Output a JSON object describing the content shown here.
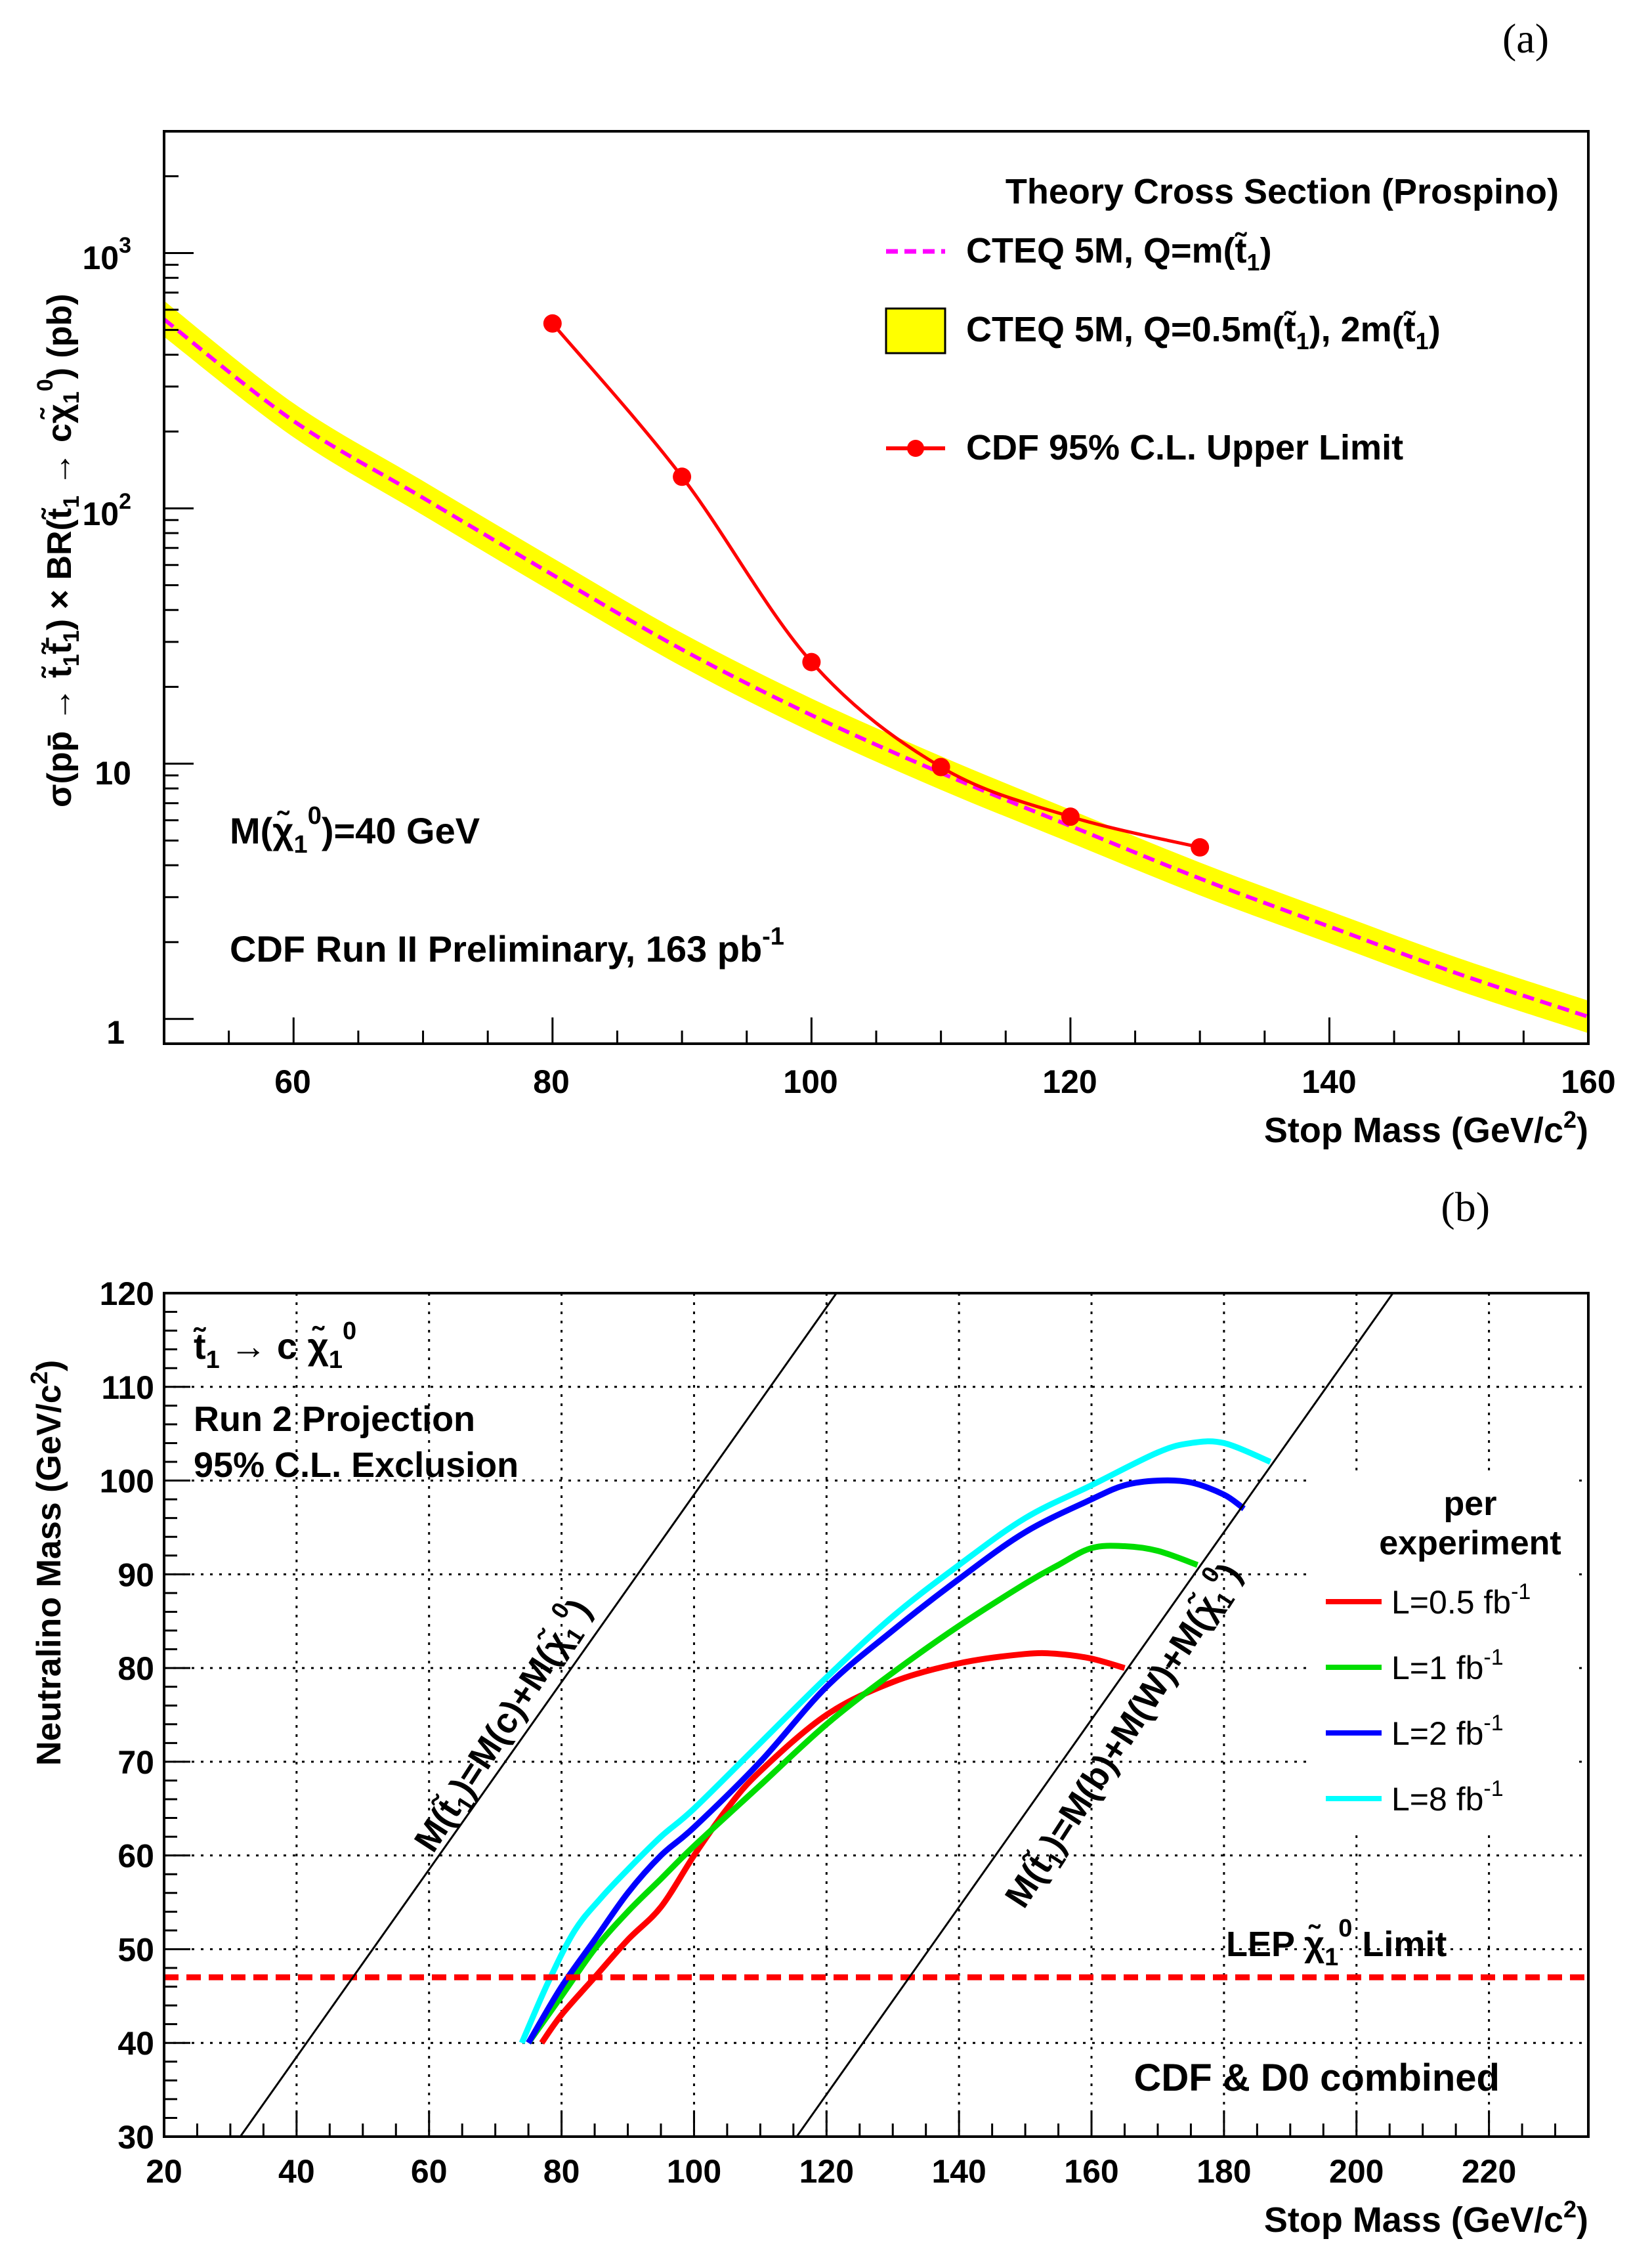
{
  "chart_data": [
    {
      "panel_label": "(a)",
      "type": "line",
      "y_scale": "log",
      "xlabel": "Stop Mass (GeV/c²)",
      "ylabel": "σ(pp̄ → t̃₁t̃̄₁) × BR(t̃₁ → cχ̃₁⁰) (pb)",
      "xlim": [
        50,
        160
      ],
      "ylim": [
        0.8,
        3000
      ],
      "x_ticks": [
        60,
        80,
        100,
        120,
        140,
        160
      ],
      "y_tick_labels": [
        "1",
        "10",
        "10²",
        "10³"
      ],
      "legend": {
        "title": "Theory Cross Section (Prospino)",
        "entries": [
          "CTEQ 5M, Q=m(t̃₁)",
          "CTEQ 5M, Q=0.5m(t̃₁), 2m(t̃₁)",
          "CDF 95% C.L. Upper Limit"
        ]
      },
      "annotations": [
        "M(χ̃₁⁰)=40 GeV",
        "CDF Run II Preliminary, 163 pb⁻¹"
      ],
      "series": [
        {
          "name": "CTEQ 5M, Q=m(t̃₁)",
          "style": "dashed",
          "color": "#ff00ff",
          "x": [
            50,
            60,
            70,
            80,
            90,
            100,
            110,
            120,
            130,
            140,
            150,
            160
          ],
          "y": [
            550,
            220,
            110,
            55,
            28,
            15.5,
            9.2,
            5.7,
            3.55,
            2.3,
            1.5,
            1.02
          ]
        },
        {
          "name": "CTEQ 5M, Q=0.5m(t̃₁), 2m(t̃₁)",
          "style": "band",
          "color": "#ffff00",
          "x": [
            50,
            60,
            70,
            80,
            90,
            100,
            110,
            120,
            130,
            140,
            150,
            160
          ],
          "y_low": [
            470,
            190,
            94,
            47,
            24,
            13.3,
            7.9,
            4.9,
            3.05,
            1.98,
            1.29,
            0.88
          ],
          "y_high": [
            650,
            258,
            128,
            64,
            32.5,
            18,
            10.7,
            6.6,
            4.1,
            2.65,
            1.73,
            1.18
          ]
        },
        {
          "name": "CDF 95% C.L. Upper Limit",
          "style": "line-markers",
          "color": "#ff0000",
          "x": [
            80,
            90,
            100,
            110,
            120,
            130
          ],
          "y": [
            530,
            133,
            25,
            9.7,
            6.2,
            4.7
          ]
        }
      ]
    },
    {
      "panel_label": "(b)",
      "type": "line",
      "xlabel": "Stop Mass (GeV/c²)",
      "ylabel": "Neutralino Mass (GeV/c²)",
      "xlim": [
        20,
        235
      ],
      "ylim": [
        30,
        120
      ],
      "x_ticks": [
        20,
        40,
        60,
        80,
        100,
        120,
        140,
        160,
        180,
        200,
        220
      ],
      "y_ticks": [
        30,
        40,
        50,
        60,
        70,
        80,
        90,
        100,
        110,
        120
      ],
      "grid": true,
      "texts": [
        "t̃₁ → c χ̃₁⁰",
        "Run 2 Projection",
        "95% C.L. Exclusion",
        "CDF & D0 combined",
        "LEP χ̃₁⁰ Limit",
        "M(t̃₁)=M(c)+M(χ̃₁⁰)",
        "M(t̃₁)=M(b)+M(W)+M(χ̃₁⁰)"
      ],
      "legend": {
        "title_lines": [
          "per",
          "experiment"
        ],
        "entries": [
          "L=0.5 fb⁻¹",
          "L=1 fb⁻¹",
          "L=2 fb⁻¹",
          "L=8 fb⁻¹"
        ]
      },
      "series": [
        {
          "name": "L=0.5 fb⁻¹",
          "color": "#ff0000",
          "x": [
            77,
            80,
            85,
            90,
            95,
            100,
            105,
            110,
            120,
            130,
            140,
            150,
            155,
            160,
            165
          ],
          "y": [
            40,
            43,
            47,
            51,
            54.5,
            60,
            65,
            69,
            75,
            78.5,
            80.5,
            81.5,
            81.5,
            81,
            80
          ]
        },
        {
          "name": "L=1 fb⁻¹",
          "color": "#00dd00",
          "x": [
            75,
            80,
            85,
            90,
            95,
            100,
            110,
            120,
            130,
            140,
            150,
            155,
            160,
            165,
            170,
            176
          ],
          "y": [
            40,
            45,
            50,
            54,
            57.5,
            61,
            67.5,
            74,
            79.5,
            84.5,
            89,
            91,
            92.8,
            93,
            92.5,
            91
          ]
        },
        {
          "name": "L=2 fb⁻¹",
          "color": "#0000ff",
          "x": [
            75,
            80,
            85,
            90,
            95,
            100,
            110,
            120,
            130,
            140,
            150,
            160,
            165,
            170,
            175,
            180,
            183
          ],
          "y": [
            40,
            46,
            51,
            56,
            60,
            63,
            70,
            78,
            84,
            89.5,
            94.5,
            98,
            99.5,
            100,
            99.8,
            98.5,
            97
          ]
        },
        {
          "name": "L=8 fb⁻¹",
          "color": "#00ffff",
          "x": [
            74,
            78,
            82,
            86,
            90,
            95,
            100,
            110,
            120,
            130,
            140,
            150,
            160,
            170,
            175,
            180,
            187
          ],
          "y": [
            40,
            46.5,
            52,
            55.5,
            58.5,
            62,
            65,
            72,
            79,
            85.5,
            91,
            96,
            99.5,
            103,
            104,
            104,
            102
          ]
        },
        {
          "name": "LEP χ̃₁⁰ Limit",
          "style": "dashed",
          "color": "#ff0000",
          "x": [
            20,
            235
          ],
          "y": [
            47,
            47
          ]
        },
        {
          "name": "M(t̃₁)=M(c)+M(χ̃₁⁰)",
          "style": "thin",
          "color": "#000000",
          "x": [
            31.5,
            121.5
          ],
          "y": [
            30,
            120
          ]
        },
        {
          "name": "M(t̃₁)=M(b)+M(W)+M(χ̃₁⁰)",
          "style": "thin",
          "color": "#000000",
          "x": [
            115.5,
            205.5
          ],
          "y": [
            30,
            120
          ]
        }
      ]
    }
  ]
}
